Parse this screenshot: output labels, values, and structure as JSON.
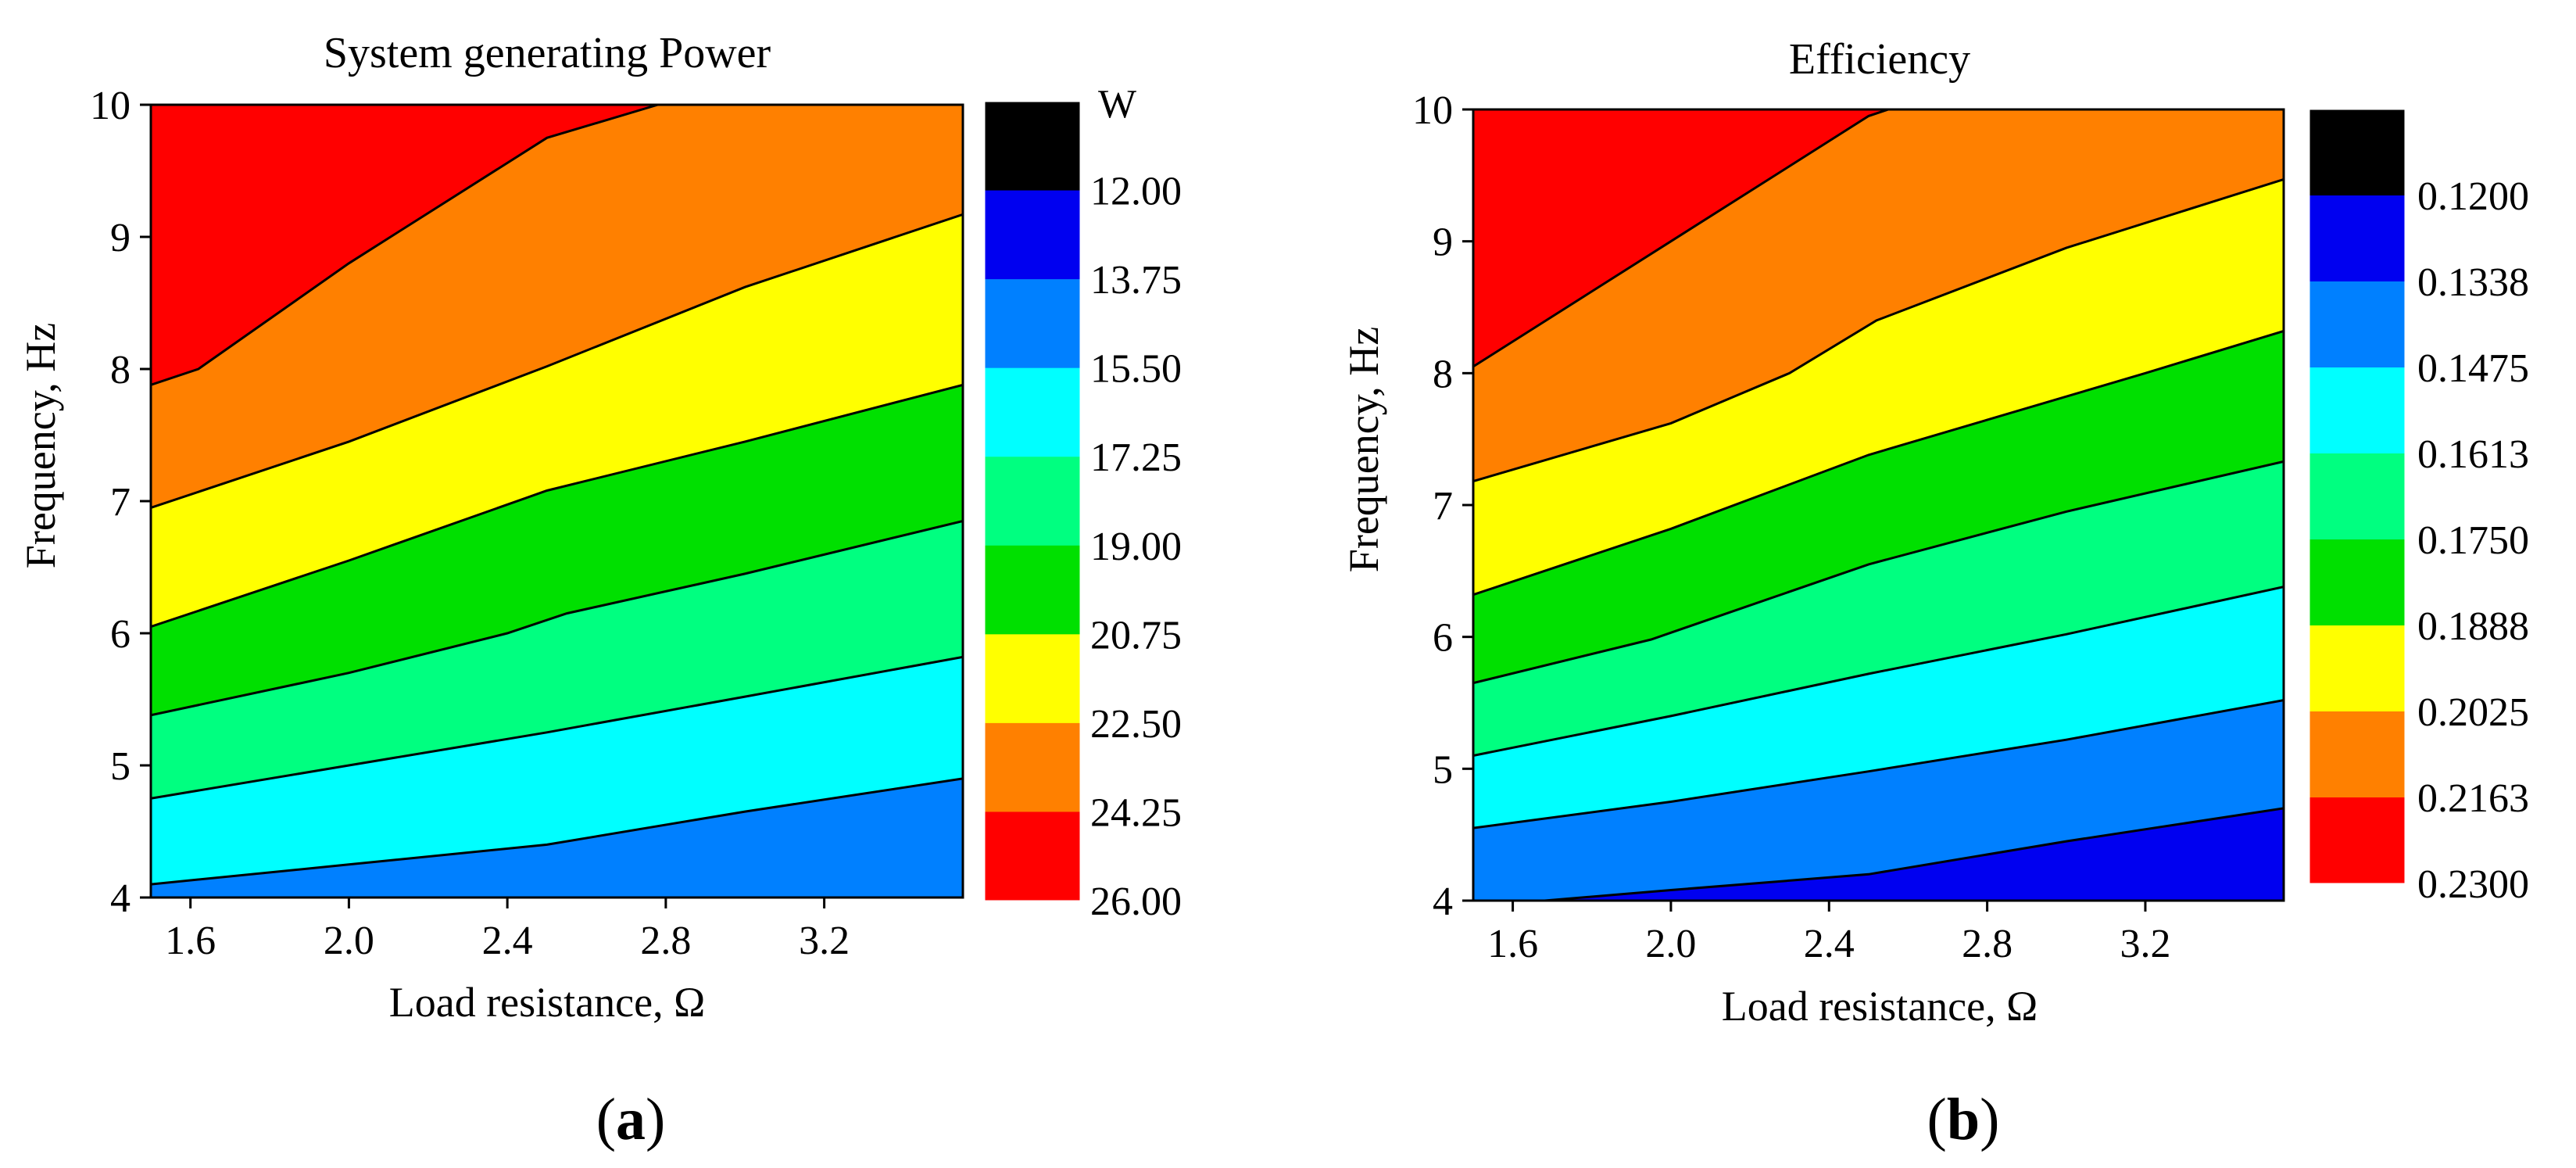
{
  "colors": {
    "black": "#000000",
    "blue": "#0000f0",
    "azure": "#0080ff",
    "cyan": "#00ffff",
    "spring_green": "#00ff80",
    "green": "#00e000",
    "yellow": "#ffff00",
    "orange": "#ff8000",
    "red": "#ff0000"
  },
  "chart_data": [
    {
      "type": "contour",
      "panel_label": "a",
      "title": "System generating Power",
      "xlabel": "Load resistance, Ω",
      "ylabel": "Frequency, Hz",
      "xlim": [
        1.5,
        3.55
      ],
      "ylim": [
        4,
        10
      ],
      "xticks": [
        1.6,
        2.0,
        2.4,
        2.8,
        3.2
      ],
      "xtick_labels": [
        "1.6",
        "2.0",
        "2.4",
        "2.8",
        "3.2"
      ],
      "yticks": [
        4,
        5,
        6,
        7,
        8,
        9,
        10
      ],
      "ytick_labels": [
        "4",
        "5",
        "6",
        "7",
        "8",
        "9",
        "10"
      ],
      "colorbar": {
        "unit": "W",
        "levels": [
          "12.00",
          "13.75",
          "15.50",
          "17.25",
          "19.00",
          "20.75",
          "22.50",
          "24.25",
          "26.00"
        ],
        "colors_top_to_bottom": [
          "black",
          "blue",
          "azure",
          "cyan",
          "spring_green",
          "green",
          "yellow",
          "orange",
          "red"
        ]
      },
      "bands": [
        {
          "range": "13.75-15.50",
          "color": "azure"
        },
        {
          "range": "15.50-17.25",
          "color": "cyan"
        },
        {
          "range": "17.25-19.00",
          "color": "spring_green"
        },
        {
          "range": "19.00-20.75",
          "color": "green"
        },
        {
          "range": "20.75-22.50",
          "color": "yellow"
        },
        {
          "range": "22.50-24.25",
          "color": "orange"
        },
        {
          "range": "24.25-26.00",
          "color": "red"
        }
      ],
      "contour_lines": [
        {
          "level": "15.50",
          "points": [
            [
              1.5,
              4.1
            ],
            [
              2.0,
              4.25
            ],
            [
              2.5,
              4.4
            ],
            [
              3.0,
              4.65
            ],
            [
              3.55,
              4.9
            ]
          ]
        },
        {
          "level": "17.25",
          "points": [
            [
              1.5,
              4.75
            ],
            [
              2.0,
              5.0
            ],
            [
              2.5,
              5.25
            ],
            [
              3.0,
              5.52
            ],
            [
              3.55,
              5.82
            ]
          ]
        },
        {
          "level": "19.00",
          "points": [
            [
              1.5,
              5.38
            ],
            [
              2.0,
              5.7
            ],
            [
              2.4,
              6.0
            ],
            [
              2.55,
              6.15
            ],
            [
              3.0,
              6.45
            ],
            [
              3.55,
              6.85
            ]
          ]
        },
        {
          "level": "20.75",
          "points": [
            [
              1.5,
              6.05
            ],
            [
              2.0,
              6.55
            ],
            [
              2.5,
              7.08
            ],
            [
              3.0,
              7.45
            ],
            [
              3.55,
              7.88
            ]
          ]
        },
        {
          "level": "22.50",
          "points": [
            [
              1.5,
              6.95
            ],
            [
              2.0,
              7.45
            ],
            [
              2.5,
              8.02
            ],
            [
              3.0,
              8.62
            ],
            [
              3.55,
              9.17
            ]
          ]
        },
        {
          "level": "24.25",
          "points": [
            [
              1.5,
              7.88
            ],
            [
              1.62,
              8.0
            ],
            [
              2.0,
              8.8
            ],
            [
              2.5,
              9.75
            ],
            [
              2.78,
              10.0
            ]
          ]
        }
      ]
    },
    {
      "type": "contour",
      "panel_label": "b",
      "title": "Efficiency",
      "xlabel": "Load resistance, Ω",
      "ylabel": "Frequency, Hz",
      "xlim": [
        1.5,
        3.55
      ],
      "ylim": [
        4,
        10
      ],
      "xticks": [
        1.6,
        2.0,
        2.4,
        2.8,
        3.2
      ],
      "xtick_labels": [
        "1.6",
        "2.0",
        "2.4",
        "2.8",
        "3.2"
      ],
      "yticks": [
        4,
        5,
        6,
        7,
        8,
        9,
        10
      ],
      "ytick_labels": [
        "4",
        "5",
        "6",
        "7",
        "8",
        "9",
        "10"
      ],
      "colorbar": {
        "unit": "",
        "levels": [
          "0.1200",
          "0.1338",
          "0.1475",
          "0.1613",
          "0.1750",
          "0.1888",
          "0.2025",
          "0.2163",
          "0.2300"
        ],
        "colors_top_to_bottom": [
          "black",
          "blue",
          "azure",
          "cyan",
          "spring_green",
          "green",
          "yellow",
          "orange",
          "red"
        ]
      },
      "bands": [
        {
          "range": "0.1200-0.1338",
          "color": "blue"
        },
        {
          "range": "0.1338-0.1475",
          "color": "azure"
        },
        {
          "range": "0.1475-0.1613",
          "color": "cyan"
        },
        {
          "range": "0.1613-0.1750",
          "color": "spring_green"
        },
        {
          "range": "0.1750-0.1888",
          "color": "green"
        },
        {
          "range": "0.1888-0.2025",
          "color": "yellow"
        },
        {
          "range": "0.2025-0.2163",
          "color": "orange"
        },
        {
          "range": "0.2163-0.2300",
          "color": "red"
        }
      ],
      "contour_lines": [
        {
          "level": "0.1338",
          "points": [
            [
              1.6,
              3.98
            ],
            [
              2.0,
              4.08
            ],
            [
              2.5,
              4.2
            ],
            [
              3.0,
              4.45
            ],
            [
              3.55,
              4.7
            ]
          ]
        },
        {
          "level": "0.1475",
          "points": [
            [
              1.5,
              4.55
            ],
            [
              2.0,
              4.75
            ],
            [
              2.5,
              4.98
            ],
            [
              3.0,
              5.22
            ],
            [
              3.55,
              5.52
            ]
          ]
        },
        {
          "level": "0.1613",
          "points": [
            [
              1.5,
              5.1
            ],
            [
              2.0,
              5.4
            ],
            [
              2.5,
              5.72
            ],
            [
              3.0,
              6.02
            ],
            [
              3.55,
              6.38
            ]
          ]
        },
        {
          "level": "0.1750",
          "points": [
            [
              1.5,
              5.65
            ],
            [
              1.95,
              5.98
            ],
            [
              2.5,
              6.55
            ],
            [
              3.0,
              6.95
            ],
            [
              3.55,
              7.33
            ]
          ]
        },
        {
          "level": "0.1888",
          "points": [
            [
              1.5,
              6.32
            ],
            [
              2.0,
              6.82
            ],
            [
              2.5,
              7.38
            ],
            [
              3.2,
              8.0
            ],
            [
              3.55,
              8.32
            ]
          ]
        },
        {
          "level": "0.2025",
          "points": [
            [
              1.5,
              7.18
            ],
            [
              2.0,
              7.62
            ],
            [
              2.3,
              8.0
            ],
            [
              2.52,
              8.4
            ],
            [
              3.0,
              8.95
            ],
            [
              3.55,
              9.47
            ]
          ]
        },
        {
          "level": "0.2163",
          "points": [
            [
              1.5,
              8.05
            ],
            [
              2.0,
              9.0
            ],
            [
              2.5,
              9.95
            ],
            [
              2.55,
              10.0
            ]
          ]
        }
      ]
    }
  ]
}
